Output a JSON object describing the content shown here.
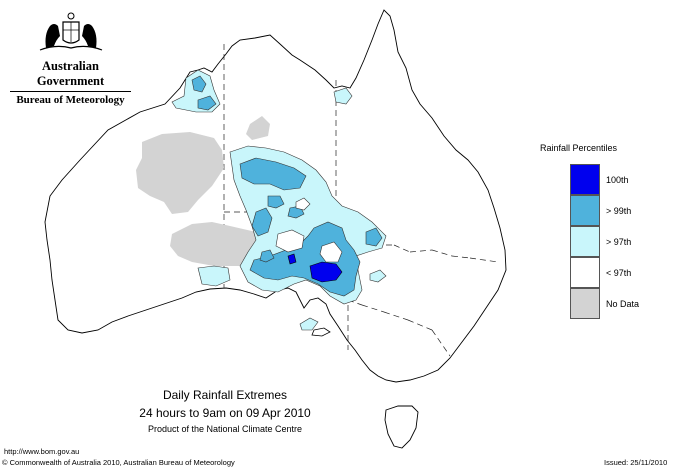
{
  "header": {
    "government": "Australian Government",
    "bureau": "Bureau of Meteorology"
  },
  "legend": {
    "title": "Rainfall Percentiles",
    "items": [
      {
        "label": "100th",
        "color": "#0000ee"
      },
      {
        "label": "> 99th",
        "color": "#4fb2dc"
      },
      {
        "label": "> 97th",
        "color": "#c9f6fb"
      },
      {
        "label": "< 97th",
        "color": "#ffffff"
      },
      {
        "label": "No Data",
        "color": "#d3d3d3"
      }
    ]
  },
  "caption": {
    "title": "Daily Rainfall Extremes",
    "period": "24 hours to 9am on 09 Apr 2010",
    "product": "Product of the National Climate Centre"
  },
  "footer": {
    "url": "http://www.bom.gov.au",
    "copyright": "© Commonwealth of Australia 2010, Australian Bureau of Meteorology",
    "issued": "Issued: 25/11/2010"
  }
}
